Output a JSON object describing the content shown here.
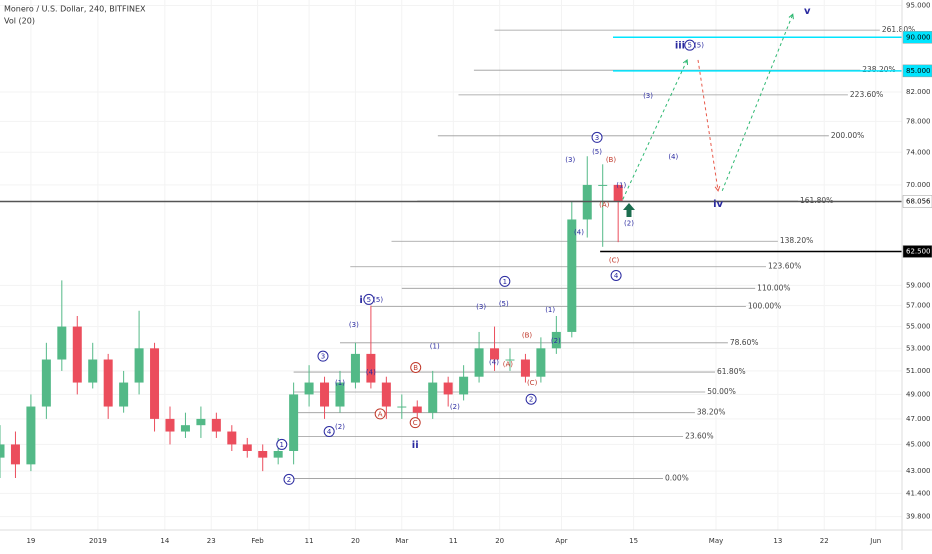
{
  "chart_data": {
    "type": "candlestick",
    "title": "Monero / U.S. Dollar, 240, BITFINEX",
    "subtitle": "Vol (20)",
    "log_scale": true,
    "up_color": "#53b987",
    "down_color": "#eb4d5c",
    "ylim": [
      38.9,
      95.9
    ],
    "yticks": [
      {
        "value": 39.8,
        "label": "39.800"
      },
      {
        "value": 41.4,
        "label": "41.400"
      },
      {
        "value": 43,
        "label": "43.000"
      },
      {
        "value": 45,
        "label": "45.000"
      },
      {
        "value": 47,
        "label": "47.000"
      },
      {
        "value": 49,
        "label": "49.000"
      },
      {
        "value": 51,
        "label": "51.000"
      },
      {
        "value": 53,
        "label": "53.000"
      },
      {
        "value": 55,
        "label": "55.000"
      },
      {
        "value": 57,
        "label": "57.000"
      },
      {
        "value": 59,
        "label": "59.000"
      },
      {
        "value": 70,
        "label": "70.000"
      },
      {
        "value": 74,
        "label": "74.000"
      },
      {
        "value": 78,
        "label": "78.000"
      },
      {
        "value": 82,
        "label": "82.000"
      },
      {
        "value": 95,
        "label": "95.000"
      }
    ],
    "xlim": [
      -19,
      156.1
    ],
    "xticks": [
      {
        "value": -13,
        "label": "19"
      },
      {
        "value": 0,
        "label": "2019"
      },
      {
        "value": 13,
        "label": "14"
      },
      {
        "value": 22,
        "label": "23"
      },
      {
        "value": 31,
        "label": "Feb"
      },
      {
        "value": 41,
        "label": "11"
      },
      {
        "value": 50,
        "label": "20"
      },
      {
        "value": 59,
        "label": "Mar"
      },
      {
        "value": 69,
        "label": "11"
      },
      {
        "value": 78,
        "label": "20"
      },
      {
        "value": 90,
        "label": "Apr"
      },
      {
        "value": 104,
        "label": "15"
      },
      {
        "value": 120,
        "label": "May"
      },
      {
        "value": 132,
        "label": "13"
      },
      {
        "value": 141,
        "label": "22"
      },
      {
        "value": 151,
        "label": "Jun"
      }
    ],
    "x": [
      -19,
      -16,
      -13,
      -10,
      -7,
      -4,
      -1,
      2,
      5,
      8,
      11,
      14,
      17,
      20,
      23,
      26,
      29,
      32,
      35,
      38,
      41,
      44,
      47,
      50,
      53,
      56,
      59,
      62,
      65,
      68,
      71,
      74,
      77,
      80,
      83,
      86,
      89,
      92,
      95,
      98,
      101
    ],
    "open": [
      44,
      45,
      43.5,
      48,
      52,
      55,
      50,
      52,
      48,
      50,
      53,
      47,
      46,
      46.5,
      47,
      46,
      45,
      44.5,
      44,
      44.5,
      49,
      50,
      48,
      50,
      52.5,
      50,
      48,
      48,
      47.5,
      50,
      49,
      50.5,
      53,
      52,
      52,
      50.5,
      53,
      54.5,
      66,
      70,
      70
    ],
    "high": [
      46.5,
      46,
      49,
      53.5,
      59.5,
      56,
      53.5,
      52.5,
      51,
      56.5,
      53.5,
      48,
      47.5,
      48,
      47.5,
      46.5,
      45.5,
      45,
      45.5,
      50,
      51.5,
      50.5,
      51,
      53.5,
      57,
      50.5,
      49,
      48.5,
      51,
      50.5,
      51.5,
      54.5,
      55,
      53,
      52.5,
      54,
      56,
      68,
      73.5,
      72.5,
      70
    ],
    "low": [
      42.5,
      42.5,
      43,
      47,
      51,
      49,
      49.5,
      47,
      47.5,
      49,
      46,
      45,
      45.5,
      45.5,
      45.5,
      44.5,
      44,
      43,
      43.5,
      43.5,
      48,
      47,
      47.5,
      49.5,
      49.5,
      47,
      47,
      46.5,
      47,
      48,
      48.5,
      50,
      51,
      51,
      50,
      50,
      52.5,
      54,
      64,
      63,
      63.5
    ],
    "close": [
      45,
      43.5,
      48,
      52,
      55,
      50,
      52,
      48,
      50,
      53,
      47,
      46,
      46.5,
      47,
      46,
      45,
      44.5,
      44,
      44.5,
      49,
      50,
      48,
      50,
      52.5,
      50,
      48,
      48,
      47.5,
      50,
      49,
      50.5,
      53,
      52,
      52,
      50.5,
      53,
      54.5,
      66,
      70,
      70,
      68
    ],
    "fib_levels": [
      {
        "label": "0.00%",
        "price": 42.46,
        "from": 38,
        "to": 109.7
      },
      {
        "label": "23.60%",
        "price": 45.6,
        "from": 38,
        "to": 113.6
      },
      {
        "label": "38.20%",
        "price": 47.5,
        "from": 38,
        "to": 115.9
      },
      {
        "label": "50.00%",
        "price": 49.2,
        "from": 38,
        "to": 117.9
      },
      {
        "label": "61.80%",
        "price": 50.9,
        "from": 38,
        "to": 119.8
      },
      {
        "label": "78.60%",
        "price": 53.5,
        "from": 47,
        "to": 122.3
      },
      {
        "label": "100.00%",
        "price": 56.9,
        "from": 53,
        "to": 125.8
      },
      {
        "label": "110.00%",
        "price": 58.7,
        "from": 59,
        "to": 127.6
      },
      {
        "label": "123.60%",
        "price": 60.9,
        "from": 49,
        "to": 129.7
      },
      {
        "label": "138.20%",
        "price": 63.6,
        "from": 57,
        "to": 132
      },
      {
        "label": "161.80%",
        "price": 68.1,
        "from": 62,
        "to": 135.9
      },
      {
        "label": "200.00%",
        "price": 76.1,
        "from": 66,
        "to": 141.9
      },
      {
        "label": "223.60%",
        "price": 81.6,
        "from": 70,
        "to": 145.6
      },
      {
        "label": "238.20%",
        "price": 85.1,
        "from": 73,
        "to": 148
      },
      {
        "label": "261.80%",
        "price": 91.1,
        "from": 77,
        "to": 151.8
      }
    ],
    "price_lines": [
      {
        "label": "90.000",
        "price": 90,
        "from": 100,
        "color": "#00e5ff",
        "box": "#00e5ff",
        "text_color": "#000"
      },
      {
        "label": "85.000",
        "price": 85,
        "from": 100,
        "color": "#00e5ff",
        "box": "#00e5ff",
        "text_color": "#000"
      },
      {
        "label": "68.056",
        "price": 68.056,
        "from": -19,
        "color": "#555",
        "box": "#ffffff",
        "text_color": "#000"
      },
      {
        "label": "62.500",
        "price": 62.5,
        "from": 97.5,
        "color": "#000",
        "box": "#000000",
        "text_color": "#fff"
      }
    ],
    "projections": [
      {
        "color": "#2eb872",
        "x": [
          101.9,
          114.4
        ],
        "y": [
          68.3,
          86.6
        ]
      },
      {
        "color": "#e8594a",
        "x": [
          116.5,
          120.4
        ],
        "y": [
          86.6,
          69.3
        ]
      },
      {
        "color": "#2eb872",
        "x": [
          121.2,
          134.9
        ],
        "y": [
          69.3,
          93.6
        ]
      }
    ],
    "annotations": [
      {
        "text": "1",
        "x": 35.7,
        "y": 45.0,
        "circle": true,
        "color": "#2a2aa0"
      },
      {
        "text": "2",
        "x": 37.1,
        "y": 42.4,
        "circle": true,
        "color": "#2a2aa0"
      },
      {
        "text": "3",
        "x": 43.7,
        "y": 52.3,
        "circle": true,
        "color": "#2a2aa0"
      },
      {
        "text": "4",
        "x": 44.9,
        "y": 46.0,
        "circle": true,
        "color": "#2a2aa0"
      },
      {
        "text": "(1)",
        "x": 47,
        "y": 50.0,
        "circle": false,
        "color": "#2a2aa0"
      },
      {
        "text": "(2)",
        "x": 47,
        "y": 46.4,
        "circle": false,
        "color": "#2a2aa0"
      },
      {
        "text": "(3)",
        "x": 49.7,
        "y": 55.2,
        "circle": false,
        "color": "#2a2aa0"
      },
      {
        "text": "(4)",
        "x": 53,
        "y": 50.9,
        "circle": false,
        "color": "#2a2aa0"
      },
      {
        "text": "(5)",
        "x": 54.4,
        "y": 57.6,
        "circle": false,
        "color": "#2a2aa0"
      },
      {
        "text": "i",
        "x": 51.1,
        "y": 57.6,
        "circle": false,
        "color": "#2a2aa0"
      },
      {
        "text": "5",
        "x": 52.6,
        "y": 57.6,
        "circle": true,
        "color": "#2a2aa0"
      },
      {
        "text": "A",
        "x": 54.8,
        "y": 47.4,
        "circle": true,
        "color": "#c0392b"
      },
      {
        "text": "B",
        "x": 61.7,
        "y": 51.3,
        "circle": true,
        "color": "#c0392b"
      },
      {
        "text": "C",
        "x": 61.6,
        "y": 46.7,
        "circle": true,
        "color": "#c0392b"
      },
      {
        "text": "ii",
        "x": 61.6,
        "y": 45.0,
        "circle": false,
        "color": "#2a2aa0"
      },
      {
        "text": "(1)",
        "x": 65.4,
        "y": 53.2,
        "circle": false,
        "color": "#2a2aa0"
      },
      {
        "text": "(2)",
        "x": 69.3,
        "y": 48.0,
        "circle": false,
        "color": "#2a2aa0"
      },
      {
        "text": "(3)",
        "x": 74.4,
        "y": 56.9,
        "circle": false,
        "color": "#2a2aa0"
      },
      {
        "text": "(4)",
        "x": 76.9,
        "y": 51.8,
        "circle": false,
        "color": "#2a2aa0"
      },
      {
        "text": "(5)",
        "x": 78.8,
        "y": 57.2,
        "circle": false,
        "color": "#2a2aa0"
      },
      {
        "text": "(B)",
        "x": 83.3,
        "y": 54.2,
        "circle": false,
        "color": "#c0392b"
      },
      {
        "text": "(A)",
        "x": 79.6,
        "y": 51.6,
        "circle": false,
        "color": "#c0392b"
      },
      {
        "text": "(C)",
        "x": 84.3,
        "y": 50.0,
        "circle": false,
        "color": "#c0392b"
      },
      {
        "text": "2",
        "x": 84.1,
        "y": 48.6,
        "circle": true,
        "color": "#2a2aa0"
      },
      {
        "text": "1",
        "x": 79,
        "y": 59.4,
        "circle": true,
        "color": "#2a2aa0"
      },
      {
        "text": "(1)",
        "x": 87.8,
        "y": 56.6,
        "circle": false,
        "color": "#2a2aa0"
      },
      {
        "text": "(2)",
        "x": 88.9,
        "y": 53.7,
        "circle": false,
        "color": "#2a2aa0"
      },
      {
        "text": "(3)",
        "x": 91.7,
        "y": 73.1,
        "circle": false,
        "color": "#2a2aa0"
      },
      {
        "text": "3",
        "x": 96.9,
        "y": 75.9,
        "circle": true,
        "color": "#2a2aa0"
      },
      {
        "text": "(5)",
        "x": 96.9,
        "y": 74.1,
        "circle": false,
        "color": "#2a2aa0"
      },
      {
        "text": "(4)",
        "x": 93.4,
        "y": 64.6,
        "circle": false,
        "color": "#2a2aa0"
      },
      {
        "text": "(B)",
        "x": 99.6,
        "y": 73.1,
        "circle": false,
        "color": "#c0392b"
      },
      {
        "text": "(1)",
        "x": 101.6,
        "y": 70.0,
        "circle": false,
        "color": "#2a2aa0"
      },
      {
        "text": "(A)",
        "x": 98.3,
        "y": 67.7,
        "circle": false,
        "color": "#c0392b"
      },
      {
        "text": "(2)",
        "x": 103.1,
        "y": 65.6,
        "circle": false,
        "color": "#2a2aa0"
      },
      {
        "text": "(C)",
        "x": 100.2,
        "y": 61.6,
        "circle": false,
        "color": "#c0392b"
      },
      {
        "text": "4",
        "x": 100.6,
        "y": 60.0,
        "circle": true,
        "color": "#2a2aa0"
      },
      {
        "text": "iii",
        "x": 113,
        "y": 88.8,
        "circle": false,
        "color": "#2a2aa0"
      },
      {
        "text": "5",
        "x": 114.9,
        "y": 88.8,
        "circle": true,
        "color": "#2a2aa0"
      },
      {
        "text": "(5)",
        "x": 116.7,
        "y": 88.8,
        "circle": false,
        "color": "#2a2aa0"
      },
      {
        "text": "(3)",
        "x": 106.8,
        "y": 81.5,
        "circle": false,
        "color": "#2a2aa0"
      },
      {
        "text": "(4)",
        "x": 111.7,
        "y": 73.5,
        "circle": false,
        "color": "#2a2aa0"
      },
      {
        "text": "iv",
        "x": 120.4,
        "y": 67.8,
        "circle": false,
        "color": "#2a2aa0"
      },
      {
        "text": "v",
        "x": 137.7,
        "y": 94.2,
        "circle": false,
        "color": "#2a2aa0"
      }
    ]
  }
}
